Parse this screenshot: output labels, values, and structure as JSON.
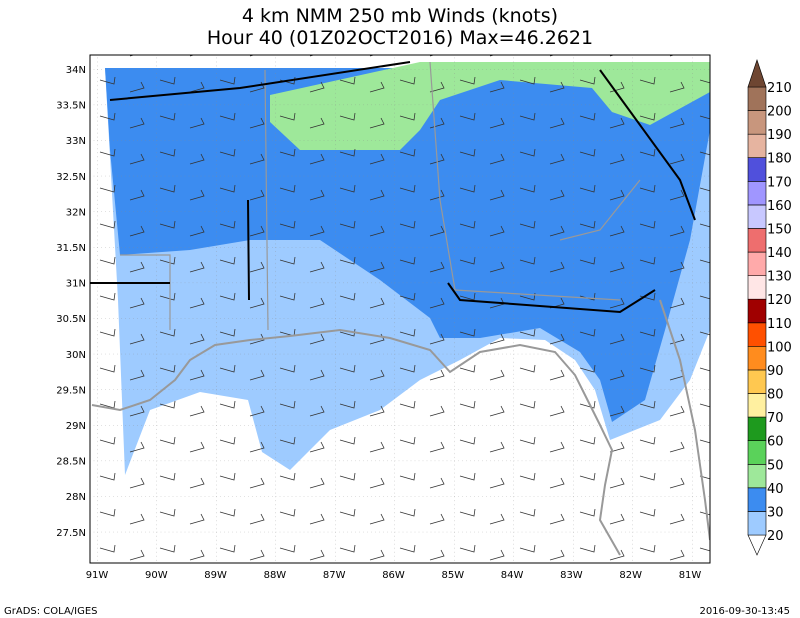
{
  "title": [
    "4 km NMM 250 mb Winds (knots)",
    "Hour 40 (01Z02OCT2016) Max=46.2621"
  ],
  "lat_labels": [
    "34N",
    "33.5N",
    "33N",
    "32.5N",
    "32N",
    "31.5N",
    "31N",
    "30.5N",
    "30N",
    "29.5N",
    "29N",
    "28.5N",
    "28N",
    "27.5N"
  ],
  "lon_labels": [
    "91W",
    "90W",
    "89W",
    "88W",
    "87W",
    "86W",
    "85W",
    "84W",
    "83W",
    "82W",
    "81W"
  ],
  "colorbar": {
    "levels": [
      20,
      30,
      40,
      50,
      60,
      70,
      80,
      90,
      100,
      110,
      120,
      130,
      140,
      150,
      160,
      170,
      180,
      190,
      200,
      210
    ],
    "colors": [
      "#ffffff",
      "#9ecbff",
      "#3c8cf0",
      "#9ee89a",
      "#5ad25a",
      "#1e9a1e",
      "#fff0a0",
      "#ffc850",
      "#ff8c1e",
      "#ff5000",
      "#a00000",
      "#ffe6e6",
      "#ffaaaa",
      "#ee6e6e",
      "#c8c8ff",
      "#a096ff",
      "#5050dc",
      "#e6b4a0",
      "#c8967d",
      "#a0735a",
      "#6e4632"
    ]
  },
  "footer": {
    "left": "GrADS: COLA/IGES",
    "right": "2016-09-30-13:45"
  }
}
